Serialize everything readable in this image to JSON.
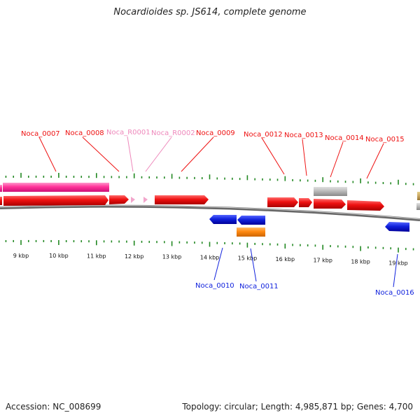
{
  "title": "Nocardioides sp. JS614, complete genome",
  "footer": {
    "accession": "Accession: NC_008699",
    "summary": "Topology: circular; Length: 4,985,871 bp; Genes: 4,700"
  },
  "colors": {
    "cds": "#ee1111",
    "rrna": "#ff55aa",
    "rrna_label": "#ee88bb",
    "reverse": "#1122dd",
    "orange": "#ff8811",
    "gray": "#bbbbbb",
    "tan": "#ccaa66",
    "tick": "#228822",
    "backbone": "#777777"
  },
  "scale": {
    "unit": "kbp",
    "labels": [
      {
        "kbp": 9,
        "text": "9 kbp"
      },
      {
        "kbp": 10,
        "text": "10 kbp"
      },
      {
        "kbp": 11,
        "text": "11 kbp"
      },
      {
        "kbp": 12,
        "text": "12 kbp"
      },
      {
        "kbp": 13,
        "text": "13 kbp"
      },
      {
        "kbp": 14,
        "text": "14 kbp"
      },
      {
        "kbp": 15,
        "text": "15 kbp"
      },
      {
        "kbp": 16,
        "text": "16 kbp"
      },
      {
        "kbp": 17,
        "text": "17 kbp"
      },
      {
        "kbp": 18,
        "text": "18 kbp"
      },
      {
        "kbp": 19,
        "text": "19 kbp"
      }
    ]
  },
  "features_top": [
    {
      "label": "Noca_0007",
      "kind": "cds"
    },
    {
      "label": "Noca_0008",
      "kind": "cds"
    },
    {
      "label": "Noca_R0001",
      "kind": "rrna"
    },
    {
      "label": "Noca_R0002",
      "kind": "rrna"
    },
    {
      "label": "Noca_0009",
      "kind": "cds"
    },
    {
      "label": "Noca_0012",
      "kind": "cds"
    },
    {
      "label": "Noca_0013",
      "kind": "cds"
    },
    {
      "label": "Noca_0014",
      "kind": "cds"
    },
    {
      "label": "Noca_0015",
      "kind": "cds"
    }
  ],
  "features_bottom": [
    {
      "label": "Noca_0010",
      "kind": "reverse"
    },
    {
      "label": "Noca_0011",
      "kind": "reverse"
    },
    {
      "label": "Noca_0016",
      "kind": "reverse"
    }
  ]
}
